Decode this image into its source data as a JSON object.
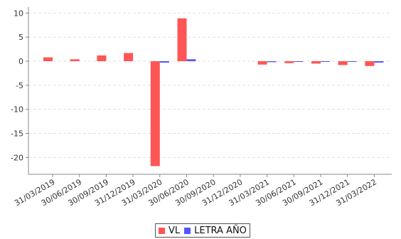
{
  "chart_data": {
    "type": "bar",
    "categories": [
      "31/03/2019",
      "30/06/2019",
      "30/09/2019",
      "31/12/2019",
      "31/03/2020",
      "30/06/2020",
      "30/09/2020",
      "31/12/2020",
      "31/03/2021",
      "30/06/2021",
      "30/09/2021",
      "31/12/2021",
      "31/03/2022"
    ],
    "series": [
      {
        "name": "VL",
        "color": "#ff5555",
        "values": [
          0.8,
          0.4,
          1.2,
          1.7,
          -21.8,
          8.9,
          0.0,
          0.0,
          -0.7,
          -0.4,
          -0.5,
          -0.8,
          -1.0
        ]
      },
      {
        "name": "LETRA AÑO",
        "color": "#5555ff",
        "values": [
          0.0,
          0.0,
          0.0,
          0.0,
          -0.3,
          0.4,
          0.0,
          0.0,
          -0.2,
          -0.1,
          -0.1,
          -0.1,
          -0.3
        ]
      }
    ],
    "ylim": [
      -23.5,
      10.5
    ],
    "yticks": [
      -20,
      -15,
      -10,
      -5,
      0,
      5,
      10
    ],
    "title": "",
    "xlabel": "",
    "ylabel": "",
    "grid": true,
    "legend_position": "bottom-center"
  }
}
